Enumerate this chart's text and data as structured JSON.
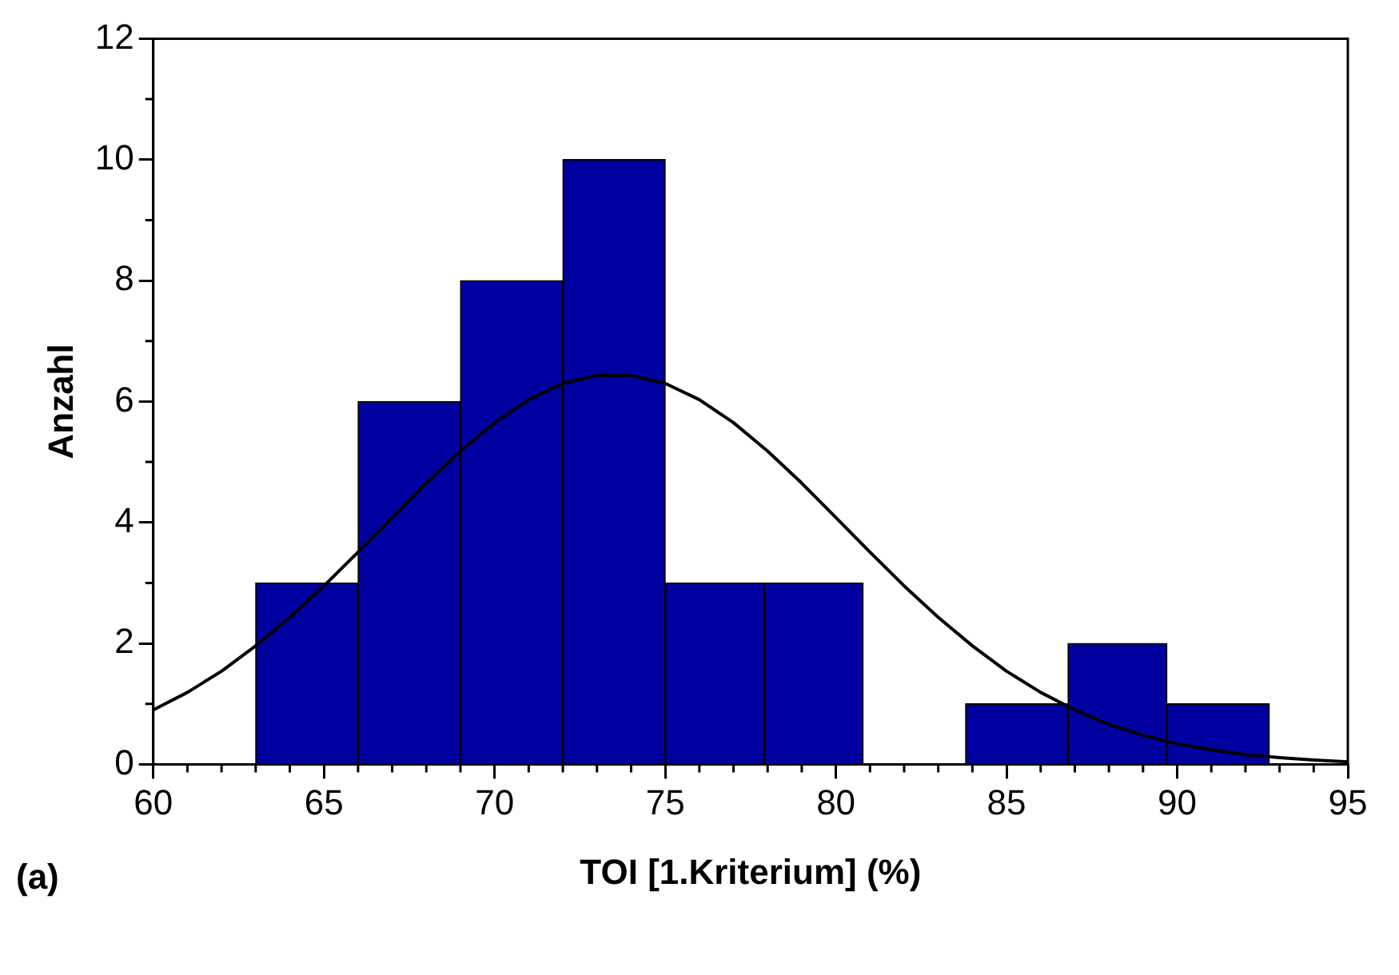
{
  "chart_data": {
    "type": "histogram",
    "xlabel": "TOI [1.Kriterium] (%)",
    "ylabel": "Anzahl",
    "annotations": [
      "(a)"
    ],
    "bins": [
      63,
      66,
      69,
      72,
      75,
      77.9,
      80.8,
      83.8,
      86.8,
      89.7,
      92.7
    ],
    "values": [
      3,
      6,
      8,
      10,
      3,
      3,
      0,
      1,
      2,
      1
    ],
    "color": "#0000a0",
    "series": [
      {
        "type": "line",
        "color": "#000000",
        "x": [
          60,
          61,
          62,
          63,
          64,
          65,
          66,
          67,
          68,
          69,
          70,
          71,
          72,
          73,
          74,
          75,
          76,
          77,
          78,
          79,
          80,
          81,
          82,
          83,
          84,
          85,
          86,
          87,
          88,
          89,
          90,
          91,
          92,
          93,
          94,
          95
        ],
        "values": [
          0.9,
          1.19,
          1.54,
          1.96,
          2.43,
          2.95,
          3.51,
          4.08,
          4.65,
          5.18,
          5.65,
          6.03,
          6.3,
          6.43,
          6.43,
          6.3,
          6.03,
          5.65,
          5.18,
          4.65,
          4.08,
          3.51,
          2.95,
          2.43,
          1.96,
          1.54,
          1.19,
          0.9,
          0.66,
          0.48,
          0.34,
          0.24,
          0.16,
          0.11,
          0.07,
          0.04
        ]
      }
    ],
    "marker": "none",
    "grid": false,
    "legend": false,
    "xlim": [
      60,
      95
    ],
    "xticks": [
      60,
      {
        "value": 61,
        "label": null
      },
      {
        "value": 62,
        "label": null
      },
      {
        "value": 63,
        "label": null
      },
      {
        "value": 64,
        "label": null
      },
      65,
      {
        "value": 66,
        "label": null
      },
      {
        "value": 67,
        "label": null
      },
      {
        "value": 68,
        "label": null
      },
      {
        "value": 69,
        "label": null
      },
      70,
      {
        "value": 71,
        "label": null
      },
      {
        "value": 72,
        "label": null
      },
      {
        "value": 73,
        "label": null
      },
      {
        "value": 74,
        "label": null
      },
      75,
      {
        "value": 76,
        "label": null
      },
      {
        "value": 77,
        "label": null
      },
      {
        "value": 78,
        "label": null
      },
      {
        "value": 79,
        "label": null
      },
      80,
      {
        "value": 81,
        "label": null
      },
      {
        "value": 82,
        "label": null
      },
      {
        "value": 83,
        "label": null
      },
      {
        "value": 84,
        "label": null
      },
      85,
      {
        "value": 86,
        "label": null
      },
      {
        "value": 87,
        "label": null
      },
      {
        "value": 88,
        "label": null
      },
      {
        "value": 89,
        "label": null
      },
      90,
      {
        "value": 91,
        "label": null
      },
      {
        "value": 92,
        "label": null
      },
      {
        "value": 93,
        "label": null
      },
      {
        "value": 94,
        "label": null
      },
      95
    ],
    "ylim": [
      0,
      12
    ],
    "yticks": [
      0,
      {
        "value": 1,
        "label": null
      },
      2,
      {
        "value": 3,
        "label": null
      },
      4,
      {
        "value": 5,
        "label": null
      },
      6,
      {
        "value": 7,
        "label": null
      },
      8,
      {
        "value": 9,
        "label": null
      },
      10,
      {
        "value": 11,
        "label": null
      },
      12
    ]
  }
}
